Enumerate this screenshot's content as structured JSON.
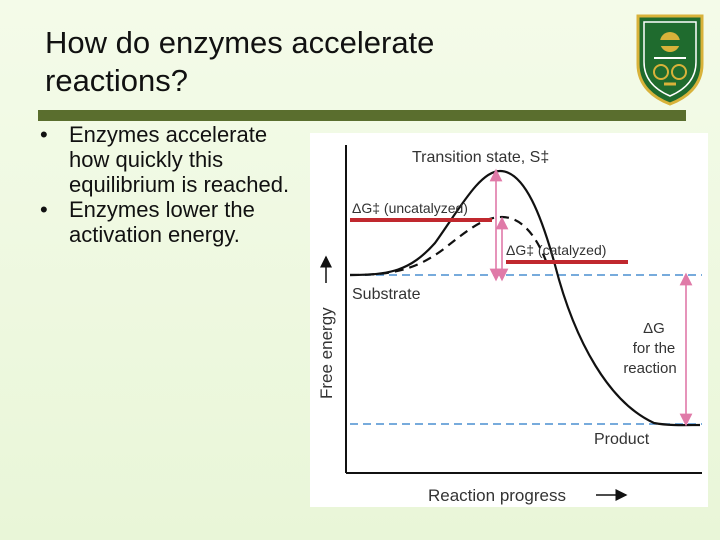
{
  "slide": {
    "title_line1": "How do enzymes accelerate",
    "title_line2": "reactions?",
    "bullets": [
      "Enzymes accelerate how quickly this equilibrium is reached.",
      "Enzymes lower the activation energy."
    ],
    "logo": {
      "icon": "university-crest-icon",
      "colors": {
        "shield": "#1f6b2e",
        "gold": "#d8b23a"
      }
    }
  },
  "diagram": {
    "y_axis_label": "Free energy",
    "x_axis_label": "Reaction progress",
    "transition_state_label": "Transition state, S‡",
    "uncatalyzed_label": "ΔG‡ (uncatalyzed)",
    "catalyzed_label": "ΔG‡ (catalyzed)",
    "substrate_label": "Substrate",
    "product_label": "Product",
    "delta_g_label_line1": "ΔG",
    "delta_g_label_line2": "for the",
    "delta_g_label_line3": "reaction",
    "colors": {
      "curve": "#111111",
      "dashed_level": "#4a8fd0",
      "arrow_pink": "#e07aa8",
      "highlight_bar": "#c0282e",
      "label_text": "#333333"
    }
  }
}
